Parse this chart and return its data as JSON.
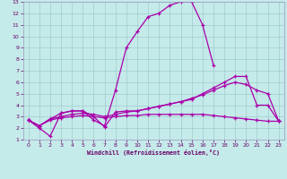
{
  "xlabel": "Windchill (Refroidissement éolien,°C)",
  "xlim": [
    -0.5,
    23.5
  ],
  "ylim": [
    1,
    13
  ],
  "yticks": [
    1,
    2,
    3,
    4,
    5,
    6,
    7,
    8,
    9,
    10,
    11,
    12,
    13
  ],
  "xticks": [
    0,
    1,
    2,
    3,
    4,
    5,
    6,
    7,
    8,
    9,
    10,
    11,
    12,
    13,
    14,
    15,
    16,
    17,
    18,
    19,
    20,
    21,
    22,
    23
  ],
  "bg_color": "#c5eaea",
  "grid_color": "#a0cccc",
  "line_color": "#aa00aa",
  "curve1": {
    "x": [
      0,
      1,
      2,
      3,
      4,
      5,
      6,
      7,
      8,
      9,
      10,
      11,
      12,
      13,
      14,
      15,
      16,
      17
    ],
    "y": [
      2.7,
      2.0,
      1.3,
      3.3,
      3.5,
      3.5,
      2.7,
      2.2,
      5.3,
      9.0,
      10.4,
      11.7,
      12.0,
      12.7,
      13.0,
      13.0,
      11.0,
      7.5
    ]
  },
  "curve2": {
    "x": [
      0,
      1,
      2,
      3,
      4,
      5,
      6,
      7,
      8,
      9,
      10,
      11,
      12,
      13,
      14,
      15,
      16,
      17,
      18,
      19,
      20,
      21,
      22,
      23
    ],
    "y": [
      2.7,
      2.2,
      2.8,
      3.3,
      3.5,
      3.5,
      3.0,
      2.1,
      3.4,
      3.5,
      3.5,
      3.7,
      3.9,
      4.1,
      4.3,
      4.5,
      5.0,
      5.5,
      6.0,
      6.5,
      6.5,
      4.0,
      4.0,
      2.6
    ]
  },
  "curve3": {
    "x": [
      0,
      1,
      2,
      3,
      4,
      5,
      6,
      7,
      8,
      9,
      10,
      11,
      12,
      13,
      14,
      15,
      16,
      17,
      18,
      19,
      20,
      21,
      22,
      23
    ],
    "y": [
      2.7,
      2.2,
      2.8,
      3.0,
      3.2,
      3.3,
      3.2,
      3.0,
      3.2,
      3.4,
      3.5,
      3.7,
      3.9,
      4.1,
      4.3,
      4.6,
      4.9,
      5.3,
      5.7,
      6.0,
      5.8,
      5.3,
      5.0,
      2.6
    ]
  },
  "curve4": {
    "x": [
      0,
      1,
      2,
      3,
      4,
      5,
      6,
      7,
      8,
      9,
      10,
      11,
      12,
      13,
      14,
      15,
      16,
      17,
      18,
      19,
      20,
      21,
      22,
      23
    ],
    "y": [
      2.7,
      2.2,
      2.7,
      2.9,
      3.0,
      3.1,
      3.0,
      2.9,
      3.0,
      3.1,
      3.1,
      3.2,
      3.2,
      3.2,
      3.2,
      3.2,
      3.2,
      3.1,
      3.0,
      2.9,
      2.8,
      2.7,
      2.6,
      2.6
    ]
  }
}
